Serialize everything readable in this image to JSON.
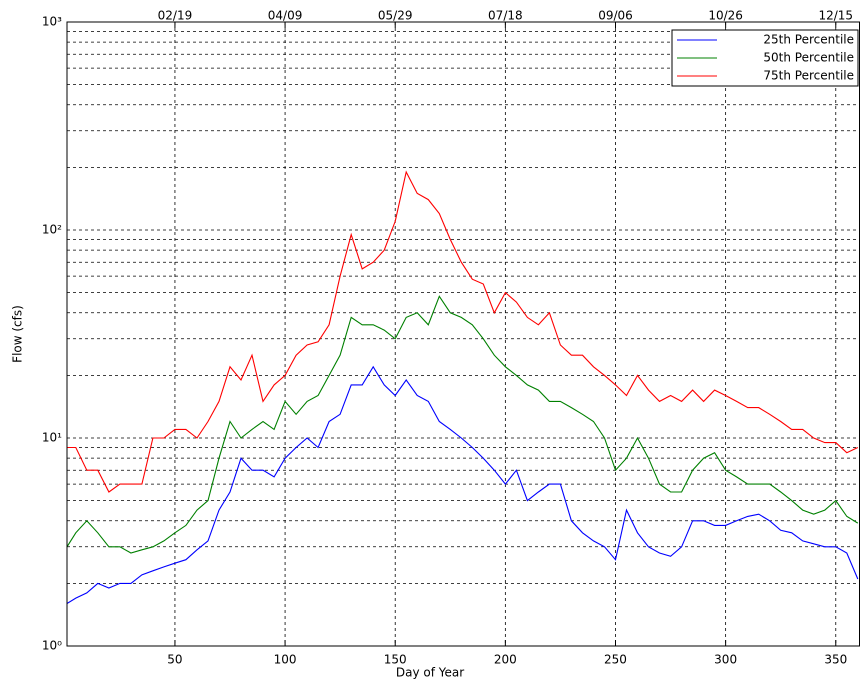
{
  "chart_data": {
    "type": "line",
    "xlabel": "Day of Year",
    "ylabel": "Flow (cfs)",
    "x": [
      1,
      5,
      10,
      15,
      20,
      25,
      30,
      35,
      40,
      45,
      50,
      55,
      60,
      65,
      70,
      75,
      80,
      85,
      90,
      95,
      100,
      105,
      110,
      115,
      120,
      125,
      130,
      135,
      140,
      145,
      150,
      155,
      160,
      165,
      170,
      175,
      180,
      185,
      190,
      195,
      200,
      205,
      210,
      215,
      220,
      225,
      230,
      235,
      240,
      245,
      250,
      255,
      260,
      265,
      270,
      275,
      280,
      285,
      290,
      295,
      300,
      305,
      310,
      315,
      320,
      325,
      330,
      335,
      340,
      345,
      350,
      355,
      360
    ],
    "series": [
      {
        "name": "25th Percentile",
        "color": "#0000ff",
        "values": [
          1.6,
          1.7,
          1.8,
          2,
          1.9,
          2,
          2,
          2.2,
          2.3,
          2.4,
          2.5,
          2.6,
          2.9,
          3.2,
          4.5,
          5.5,
          8,
          7,
          7,
          6.5,
          8,
          9,
          10,
          9,
          12,
          13,
          18,
          18,
          22,
          18,
          16,
          19,
          16,
          15,
          12,
          11,
          10,
          9,
          8,
          7,
          6,
          7,
          5,
          5.5,
          6,
          6,
          4,
          3.5,
          3.2,
          3,
          2.6,
          4.5,
          3.5,
          3,
          2.8,
          2.7,
          3,
          4,
          4,
          3.8,
          3.8,
          4,
          4.2,
          4.3,
          4,
          3.6,
          3.5,
          3.2,
          3.1,
          3,
          3,
          2.8,
          2.1
        ]
      },
      {
        "name": "50th Percentile",
        "color": "#008000",
        "values": [
          3,
          3.5,
          4,
          3.5,
          3,
          3,
          2.8,
          2.9,
          3,
          3.2,
          3.5,
          3.8,
          4.5,
          5,
          8,
          12,
          10,
          11,
          12,
          11,
          15,
          13,
          15,
          16,
          20,
          25,
          38,
          35,
          35,
          33,
          30,
          38,
          40,
          35,
          48,
          40,
          38,
          35,
          30,
          25,
          22,
          20,
          18,
          17,
          15,
          15,
          14,
          13,
          12,
          10,
          7,
          8,
          10,
          8,
          6,
          5.5,
          5.5,
          7,
          8,
          8.5,
          7,
          6.5,
          6,
          6,
          6,
          5.5,
          5,
          4.5,
          4.3,
          4.5,
          5,
          4.2,
          3.9
        ]
      },
      {
        "name": "75th Percentile",
        "color": "#ff0000",
        "values": [
          9,
          9,
          7,
          7,
          5.5,
          6,
          6,
          6,
          10,
          10,
          11,
          11,
          10,
          12,
          15,
          22,
          19,
          25,
          15,
          18,
          20,
          25,
          28,
          29,
          35,
          60,
          95,
          65,
          70,
          80,
          110,
          190,
          150,
          140,
          120,
          90,
          70,
          58,
          55,
          40,
          50,
          45,
          38,
          35,
          40,
          28,
          25,
          25,
          22,
          20,
          18,
          16,
          20,
          17,
          15,
          16,
          15,
          17,
          15,
          17,
          16,
          15,
          14,
          14,
          13,
          12,
          11,
          11,
          10,
          9.5,
          9.5,
          8.5,
          9
        ]
      }
    ],
    "xlim": [
      1,
      361
    ],
    "xticks": [
      50,
      100,
      150,
      200,
      250,
      300,
      350
    ],
    "x2ticks": [
      {
        "value": 50,
        "label": "02/19"
      },
      {
        "value": 100,
        "label": "04/09"
      },
      {
        "value": 150,
        "label": "05/29"
      },
      {
        "value": 200,
        "label": "07/18"
      },
      {
        "value": 250,
        "label": "09/06"
      },
      {
        "value": 300,
        "label": "10/26"
      },
      {
        "value": 350,
        "label": "12/15"
      }
    ],
    "ylim": [
      1,
      1000
    ],
    "yscale": "log",
    "yticks": [
      {
        "value": 1,
        "label": "10⁰"
      },
      {
        "value": 10,
        "label": "10¹"
      },
      {
        "value": 100,
        "label": "10²"
      },
      {
        "value": 1000,
        "label": "10³"
      }
    ],
    "yminorticks": [
      2,
      3,
      4,
      5,
      6,
      7,
      8,
      9,
      20,
      30,
      40,
      50,
      60,
      70,
      80,
      90,
      200,
      300,
      400,
      500,
      600,
      700,
      800,
      900
    ],
    "grid": true,
    "legend": "upper right"
  }
}
